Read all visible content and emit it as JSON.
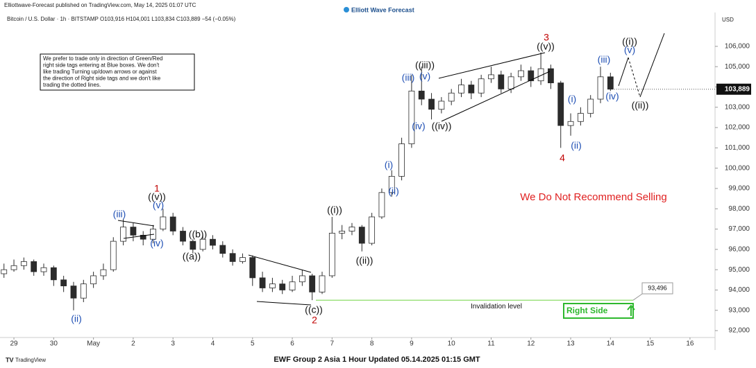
{
  "chart_data": {
    "type": "candlestick",
    "header": "Elliottwave-Forecast published on TradingView.com, May 14, 2025 01:07 UTC",
    "logo": "Elliott Wave Forecast",
    "symbol_line": "Bitcoin / U.S. Dollar · 1h · BITSTAMP O103,916 H104,001 L103,834 C103,889 −54 (−0.05%)",
    "currency": "USD",
    "note": [
      "We prefer to trade only in direction of Green/Red",
      "right side tags entering at Blue boxes. We don't",
      "like trading Turning up/down arrows or against",
      "the direction of Right side tags and we don't like",
      "trading the dotted lines."
    ],
    "x": [
      -0.25,
      0,
      0.25,
      0.5,
      0.75,
      1,
      1.25,
      1.5,
      1.75,
      2,
      2.25,
      2.5,
      2.75,
      3,
      3.25,
      3.5,
      3.75,
      4,
      4.25,
      4.5,
      4.75,
      5,
      5.25,
      5.5,
      5.75,
      6,
      6.25,
      6.5,
      6.75,
      7,
      7.25,
      7.5,
      7.75,
      8,
      8.25,
      8.5,
      8.75,
      9,
      9.25,
      9.5,
      9.75,
      10,
      10.25,
      10.5,
      10.75,
      11,
      11.25,
      11.5,
      11.75,
      12,
      12.25,
      12.5,
      12.75,
      13,
      13.25,
      13.5,
      13.75,
      14,
      14.25,
      14.5,
      14.75,
      15
    ],
    "open": [
      94800,
      95000,
      95200,
      95400,
      94900,
      95100,
      94500,
      94200,
      93600,
      94300,
      94700,
      95000,
      96400,
      97100,
      96700,
      96500,
      97000,
      97600,
      96900,
      96400,
      96000,
      96500,
      96200,
      95800,
      95400,
      95600,
      94600,
      94100,
      94300,
      94000,
      94400,
      94700,
      93900,
      94700,
      96800,
      96900,
      97100,
      96300,
      97600,
      98800,
      99600,
      101200,
      103800,
      103400,
      102900,
      103300,
      103700,
      104100,
      103700,
      104400,
      104600,
      103900,
      104500,
      104800,
      104300,
      104900,
      104200,
      102100,
      102300,
      102700,
      103400,
      104500
    ],
    "high": [
      95300,
      95500,
      95600,
      95500,
      95300,
      95200,
      94700,
      94400,
      94500,
      94900,
      95300,
      96600,
      97500,
      97300,
      96900,
      97200,
      98000,
      97800,
      97100,
      96500,
      96700,
      96700,
      96400,
      96000,
      95800,
      95700,
      94900,
      94600,
      94500,
      94700,
      95000,
      94800,
      94900,
      97600,
      97200,
      97300,
      97200,
      97800,
      99000,
      99900,
      101500,
      104600,
      105000,
      103700,
      103500,
      103900,
      104400,
      104300,
      104600,
      105000,
      104800,
      104700,
      105100,
      105000,
      105700,
      105100,
      104300,
      102700,
      103000,
      103600,
      105000,
      104700
    ],
    "low": [
      94600,
      94900,
      95000,
      94700,
      94700,
      94200,
      93900,
      93000,
      93400,
      94100,
      94500,
      94900,
      96200,
      96400,
      96200,
      96300,
      96900,
      96700,
      96200,
      95800,
      95900,
      96000,
      95600,
      95200,
      95300,
      94200,
      93900,
      93900,
      93800,
      93900,
      94200,
      93500,
      93800,
      94600,
      96500,
      96700,
      95900,
      96200,
      97500,
      98600,
      99400,
      101000,
      103100,
      102400,
      102700,
      103100,
      103500,
      103400,
      103500,
      104200,
      103700,
      103700,
      104300,
      104000,
      104100,
      103900,
      101000,
      101600,
      102100,
      102500,
      103200,
      103800
    ],
    "close": [
      95000,
      95200,
      95400,
      94900,
      95100,
      94500,
      94200,
      93600,
      94300,
      94700,
      95000,
      96400,
      97100,
      96700,
      96500,
      97000,
      97600,
      96900,
      96400,
      96000,
      96500,
      96200,
      95800,
      95400,
      95600,
      94600,
      94100,
      94300,
      94000,
      94400,
      94700,
      93900,
      94700,
      96800,
      96900,
      97100,
      96300,
      97600,
      98800,
      99600,
      101200,
      103800,
      103400,
      102900,
      103300,
      103700,
      104100,
      103700,
      104400,
      104600,
      103900,
      104500,
      104800,
      104300,
      104900,
      104200,
      102100,
      102300,
      102700,
      103400,
      104500,
      103889
    ],
    "up_color": "#ffffff",
    "down_color": "#2b2b2b",
    "xlim": [
      -0.35,
      17.63
    ],
    "xticks": [
      {
        "value": 0,
        "label": "29"
      },
      {
        "value": 1,
        "label": "30"
      },
      {
        "value": 2,
        "label": "May"
      },
      {
        "value": 3,
        "label": "2"
      },
      {
        "value": 4,
        "label": "3"
      },
      {
        "value": 5,
        "label": "4"
      },
      {
        "value": 6,
        "label": "5"
      },
      {
        "value": 7,
        "label": "6"
      },
      {
        "value": 8,
        "label": "7"
      },
      {
        "value": 9,
        "label": "8"
      },
      {
        "value": 10,
        "label": "9"
      },
      {
        "value": 11,
        "label": "10"
      },
      {
        "value": 12,
        "label": "11"
      },
      {
        "value": 13,
        "label": "12"
      },
      {
        "value": 14,
        "label": "13"
      },
      {
        "value": 15,
        "label": "14"
      },
      {
        "value": 16,
        "label": "15"
      },
      {
        "value": 17,
        "label": "16"
      }
    ],
    "ylim": [
      91660,
      107600
    ],
    "yticks": [
      {
        "value": 92000,
        "label": "92,000"
      },
      {
        "value": 93000,
        "label": "93,000"
      },
      {
        "value": 94000,
        "label": "94,000"
      },
      {
        "value": 95000,
        "label": "95,000"
      },
      {
        "value": 96000,
        "label": "96,000"
      },
      {
        "value": 97000,
        "label": "97,000"
      },
      {
        "value": 98000,
        "label": "98,000"
      },
      {
        "value": 99000,
        "label": "99,000"
      },
      {
        "value": 100000,
        "label": "100,000"
      },
      {
        "value": 101000,
        "label": "101,000"
      },
      {
        "value": 102000,
        "label": "102,000"
      },
      {
        "value": 103000,
        "label": "103,000"
      },
      {
        "value": 104000,
        "label": "104,000"
      },
      {
        "value": 105000,
        "label": "105,000"
      },
      {
        "value": 106000,
        "label": "106,000"
      }
    ],
    "price_tag": {
      "value": 103889,
      "label": "103,889"
    },
    "invalidation": {
      "value": 93496,
      "label": "93,496",
      "text": "Invalidation level",
      "color": "#7ed957"
    },
    "right_side": {
      "text": "Right Side",
      "color": "#2db82d"
    },
    "warning": {
      "text": "We Do Not Recommend Selling",
      "color": "#e02020"
    },
    "wave_labels": [
      "(ii)",
      "(iii)",
      "(iv)",
      "(v)",
      "((v))",
      "1",
      "((a))",
      "((b))",
      "((c))",
      "2",
      "((i))",
      "((ii))",
      "(i)",
      "(ii)",
      "(iii)",
      "(v)",
      "((iii))",
      "(iv)",
      "((iv))",
      "((v))",
      "3",
      "(i)",
      "(ii)",
      "4",
      "(iii)",
      "(iv)",
      "((i))",
      "(v)",
      "((ii))"
    ],
    "footer": "EWF Group 2 Asia 1 Hour Updated 05.14.2025 01:15 GMT",
    "brand": "TradingView"
  }
}
